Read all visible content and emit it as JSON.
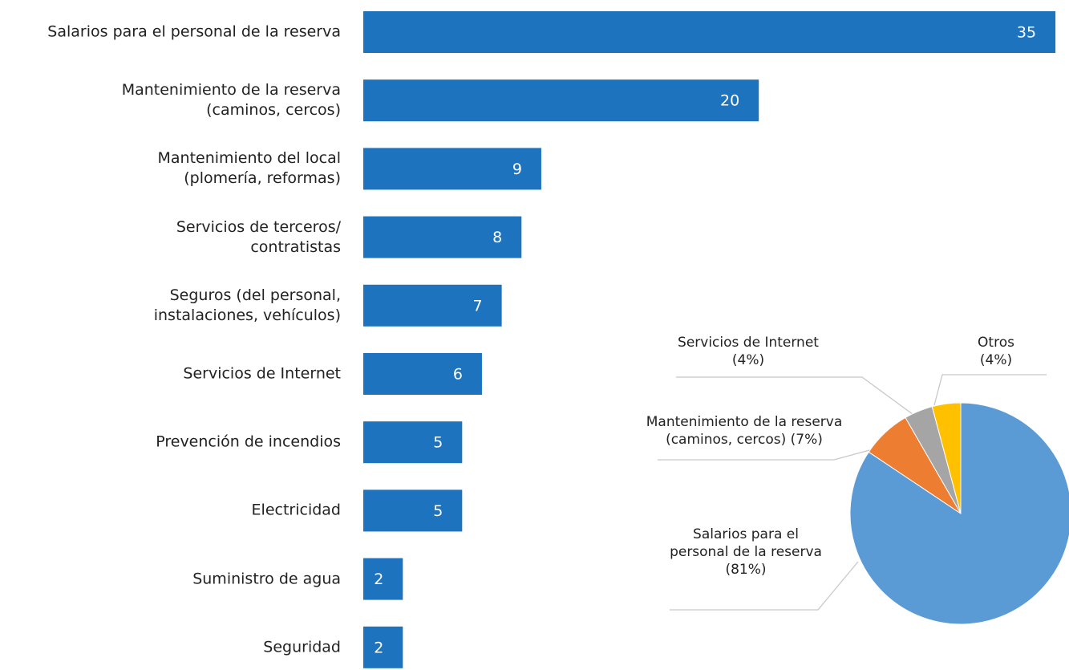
{
  "chart_data": [
    {
      "type": "barh",
      "categories": [
        "Salarios para el personal de la reserva",
        "Mantenimiento de la reserva\n(caminos, cercos)",
        "Mantenimiento del local\n(plomería, reformas)",
        "Servicios de terceros/\ncontratistas",
        "Seguros (del personal,\ninstalaciones, vehículos)",
        "Servicios de Internet",
        "Prevención de incendios",
        "Electricidad",
        "Suministro de agua",
        "Seguridad"
      ],
      "values": [
        35,
        20,
        9,
        8,
        7,
        6,
        5,
        5,
        2,
        2
      ],
      "color": "#1e73be"
    },
    {
      "type": "pie",
      "categories": [
        "Salarios para el\npersonal de la reserva\n(81%)",
        "Mantenimiento de la reserva\n(caminos, cercos) (7%)",
        "Servicios de Internet\n(4%)",
        "Otros\n(4%)"
      ],
      "values": [
        81,
        7,
        4,
        4
      ],
      "colors": [
        "#5b9bd5",
        "#ed7d31",
        "#a5a5a5",
        "#ffc000"
      ]
    }
  ]
}
